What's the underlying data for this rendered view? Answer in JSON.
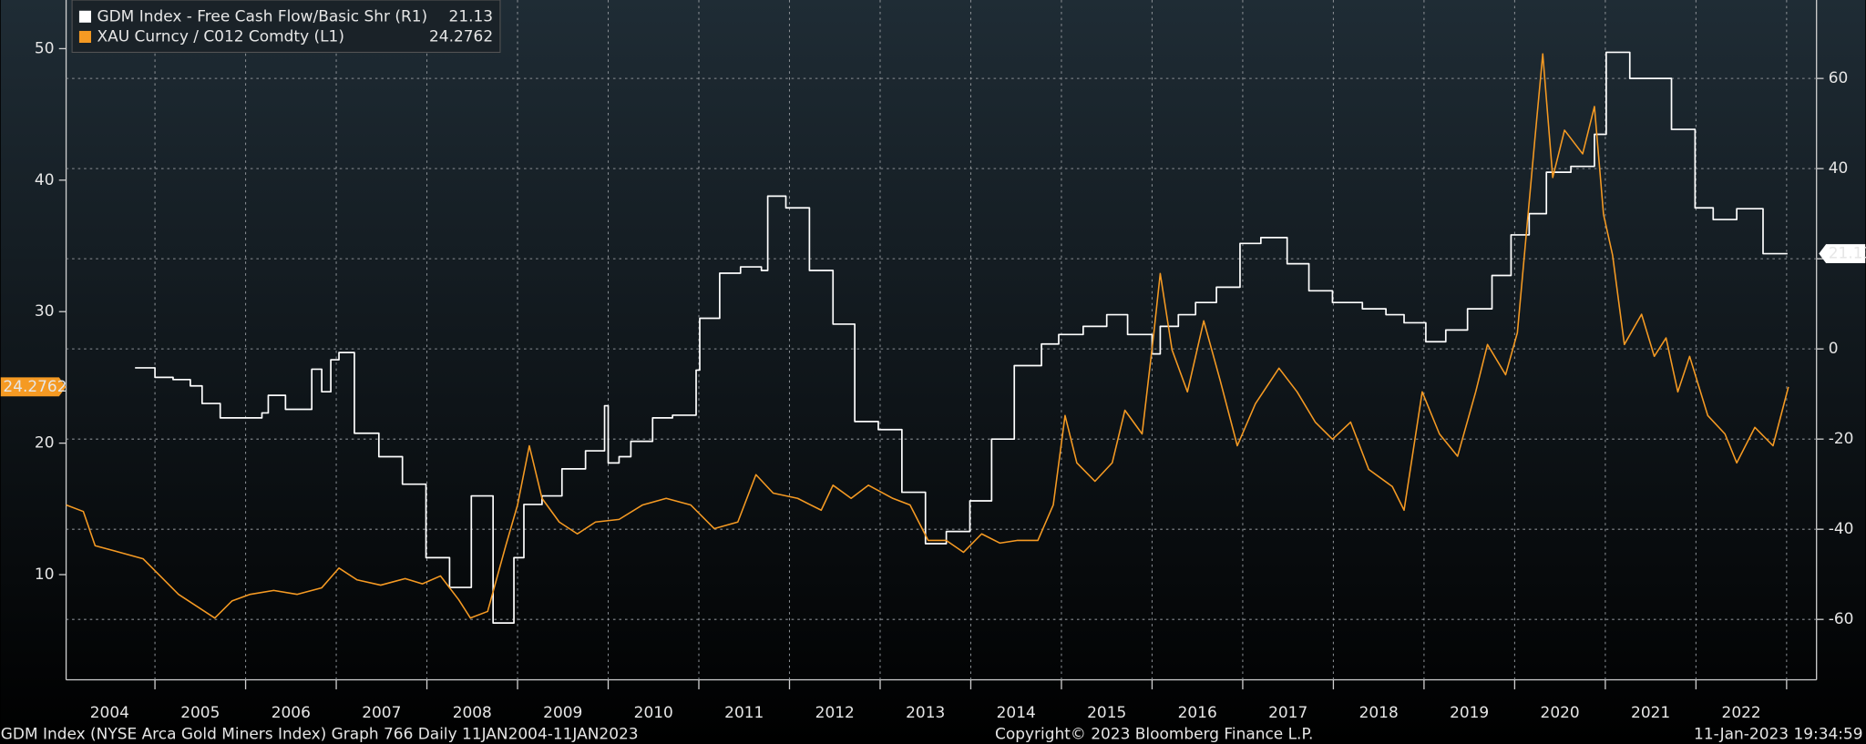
{
  "chart_data": {
    "type": "line",
    "legend": "top-left",
    "grid_axis": "y2",
    "xlim": [
      2004.02,
      2023.33
    ],
    "xticks": [
      {
        "value": 2004.5,
        "label": "2004"
      },
      {
        "value": 2005.5,
        "label": "2005"
      },
      {
        "value": 2006.5,
        "label": "2006"
      },
      {
        "value": 2007.5,
        "label": "2007"
      },
      {
        "value": 2008.5,
        "label": "2008"
      },
      {
        "value": 2009.5,
        "label": "2009"
      },
      {
        "value": 2010.5,
        "label": "2010"
      },
      {
        "value": 2011.5,
        "label": "2011"
      },
      {
        "value": 2012.5,
        "label": "2012"
      },
      {
        "value": 2013.5,
        "label": "2013"
      },
      {
        "value": 2014.5,
        "label": "2014"
      },
      {
        "value": 2015.5,
        "label": "2015"
      },
      {
        "value": 2016.5,
        "label": "2016"
      },
      {
        "value": 2017.5,
        "label": "2017"
      },
      {
        "value": 2018.5,
        "label": "2018"
      },
      {
        "value": 2019.5,
        "label": "2019"
      },
      {
        "value": 2020.5,
        "label": "2020"
      },
      {
        "value": 2021.5,
        "label": "2021"
      },
      {
        "value": 2022.5,
        "label": "2022"
      }
    ],
    "ylim": [
      2,
      53.7
    ],
    "yticks": [
      10,
      20,
      30,
      40,
      50
    ],
    "y2lim": [
      -73.4,
      77.4
    ],
    "y2ticks": [
      -60,
      -40,
      -20,
      0,
      20,
      40,
      60
    ],
    "series": [
      {
        "name": "GDM Index - Free Cash Flow/Basic Shr (R1)",
        "color": "#ffffff",
        "axis": "y2",
        "step": true,
        "x": [
          2004.78,
          2005.0,
          2005.2,
          2005.39,
          2005.52,
          2005.72,
          2006.18,
          2006.25,
          2006.44,
          2006.73,
          2006.84,
          2006.94,
          2007.03,
          2007.2,
          2007.47,
          2007.73,
          2007.99,
          2008.25,
          2008.49,
          2008.73,
          2008.96,
          2009.07,
          2009.27,
          2009.49,
          2009.75,
          2009.96,
          2010.0,
          2010.12,
          2010.25,
          2010.49,
          2010.71,
          2010.97,
          2011.01,
          2011.23,
          2011.46,
          2011.69,
          2011.76,
          2011.96,
          2012.22,
          2012.48,
          2012.72,
          2012.98,
          2013.24,
          2013.5,
          2013.73,
          2013.99,
          2014.23,
          2014.48,
          2014.78,
          2014.97,
          2015.24,
          2015.5,
          2015.73,
          2016.0,
          2016.09,
          2016.29,
          2016.48,
          2016.71,
          2016.97,
          2017.2,
          2017.49,
          2017.73,
          2017.99,
          2018.32,
          2018.58,
          2018.78,
          2019.02,
          2019.24,
          2019.48,
          2019.75,
          2019.96,
          2020.16,
          2020.35,
          2020.62,
          2020.88,
          2021.01,
          2021.27,
          2021.73,
          2021.99,
          2022.19,
          2022.45,
          2022.74,
          2023.01
        ],
        "values": [
          -4.2,
          -6.3,
          -6.8,
          -8.2,
          -12.1,
          -15.3,
          -14.2,
          -10.3,
          -13.4,
          -4.5,
          -9.5,
          -2.4,
          -0.8,
          -18.7,
          -23.9,
          -30.0,
          -46.3,
          -52.9,
          -32.6,
          -60.8,
          -46.3,
          -34.5,
          -32.6,
          -26.6,
          -22.6,
          -12.6,
          -25.3,
          -23.9,
          -20.5,
          -15.3,
          -14.7,
          -4.7,
          6.8,
          16.8,
          18.2,
          17.4,
          33.9,
          31.3,
          17.4,
          5.5,
          -16.1,
          -17.9,
          -31.8,
          -43.2,
          -40.5,
          -33.7,
          -20.0,
          -3.7,
          1.1,
          3.2,
          5.0,
          7.6,
          3.2,
          -1.1,
          5.0,
          7.6,
          10.3,
          13.7,
          23.4,
          24.7,
          18.9,
          12.9,
          10.3,
          8.9,
          7.6,
          5.8,
          1.6,
          4.2,
          8.9,
          16.3,
          25.3,
          30.0,
          39.2,
          40.5,
          47.6,
          65.8,
          60.0,
          48.7,
          31.3,
          28.7,
          31.1,
          21.13,
          21.13
        ]
      },
      {
        "name": "XAU Curncy / C012 Comdty (L1)",
        "color": "#f59a23",
        "axis": "y",
        "x": [
          2004.02,
          2004.21,
          2004.34,
          2004.61,
          2004.87,
          2005.0,
          2005.26,
          2005.46,
          2005.66,
          2005.85,
          2006.05,
          2006.31,
          2006.57,
          2006.84,
          2007.03,
          2007.23,
          2007.49,
          2007.76,
          2007.95,
          2008.15,
          2008.35,
          2008.48,
          2008.67,
          2008.87,
          2009.0,
          2009.13,
          2009.27,
          2009.46,
          2009.66,
          2009.86,
          2010.12,
          2010.38,
          2010.64,
          2010.91,
          2011.17,
          2011.43,
          2011.63,
          2011.82,
          2012.09,
          2012.35,
          2012.48,
          2012.68,
          2012.87,
          2013.14,
          2013.33,
          2013.53,
          2013.73,
          2013.92,
          2014.12,
          2014.32,
          2014.51,
          2014.74,
          2014.91,
          2015.04,
          2015.17,
          2015.37,
          2015.56,
          2015.7,
          2015.89,
          2016.02,
          2016.09,
          2016.22,
          2016.39,
          2016.57,
          2016.75,
          2016.94,
          2017.14,
          2017.4,
          2017.6,
          2017.8,
          2017.99,
          2018.19,
          2018.39,
          2018.65,
          2018.78,
          2018.98,
          2019.17,
          2019.37,
          2019.57,
          2019.7,
          2019.9,
          2020.03,
          2020.22,
          2020.31,
          2020.42,
          2020.55,
          2020.75,
          2020.88,
          2020.98,
          2021.08,
          2021.21,
          2021.4,
          2021.54,
          2021.67,
          2021.8,
          2021.93,
          2022.13,
          2022.32,
          2022.45,
          2022.65,
          2022.85,
          2023.02
        ],
        "values": [
          15.3,
          14.8,
          12.2,
          11.7,
          11.2,
          10.3,
          8.5,
          7.6,
          6.7,
          8.0,
          8.5,
          8.8,
          8.5,
          9.0,
          10.5,
          9.6,
          9.2,
          9.7,
          9.3,
          9.9,
          8.1,
          6.7,
          7.2,
          12.2,
          15.3,
          19.8,
          15.8,
          14.0,
          13.1,
          14.0,
          14.2,
          15.3,
          15.8,
          15.3,
          13.5,
          14.0,
          17.6,
          16.2,
          15.8,
          14.9,
          16.8,
          15.8,
          16.8,
          15.8,
          15.3,
          12.6,
          12.6,
          11.7,
          13.1,
          12.4,
          12.6,
          12.6,
          15.3,
          22.1,
          18.5,
          17.1,
          18.5,
          22.5,
          20.7,
          28.4,
          32.9,
          27.1,
          23.9,
          29.3,
          24.8,
          19.8,
          23.0,
          25.7,
          23.9,
          21.6,
          20.3,
          21.6,
          18.0,
          16.7,
          14.9,
          23.9,
          20.7,
          19.0,
          23.9,
          27.5,
          25.2,
          28.4,
          42.9,
          49.6,
          40.2,
          43.8,
          42.0,
          45.6,
          37.4,
          34.3,
          27.5,
          29.8,
          26.6,
          28.0,
          23.9,
          26.6,
          22.1,
          20.7,
          18.5,
          21.2,
          19.8,
          24.2762
        ]
      }
    ],
    "footer": {
      "left": "GDM Index (NYSE Arca Gold Miners Index) Graph 766  Daily 11JAN2004-11JAN2023",
      "center": "Copyright© 2023 Bloomberg Finance L.P.",
      "right": "11-Jan-2023 19:34:59"
    }
  }
}
